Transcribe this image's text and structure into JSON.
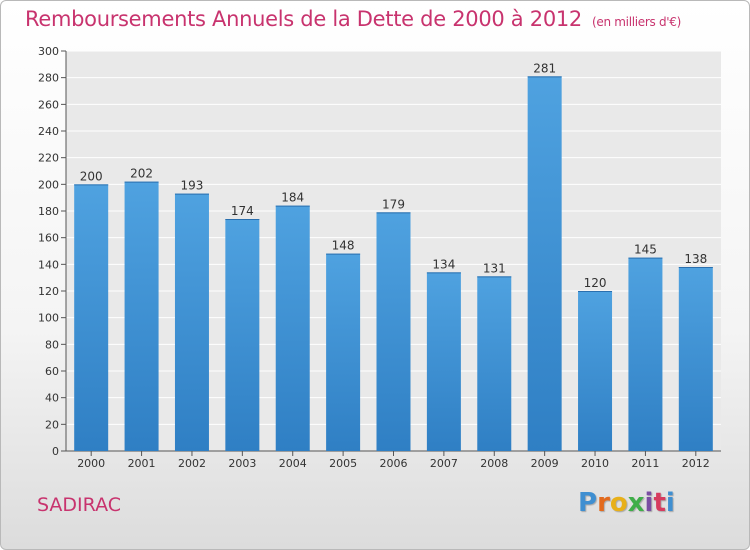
{
  "header": {
    "title": "Remboursements Annuels de la Dette de 2000 à 2012",
    "unit": "(en milliers d'€)"
  },
  "footer": {
    "place": "SADIRAC",
    "logo": "Proxiti",
    "logo_colors": [
      "#3f8fd1",
      "#e36a1d",
      "#e8b01a",
      "#3fae49",
      "#7a4ea3",
      "#d63b5e",
      "#3f8fd1"
    ]
  },
  "colors": {
    "bar": "#4fa2e0",
    "bar_dark": "#2f7fc4",
    "title": "#c8336e"
  },
  "chart_data": {
    "type": "bar",
    "categories": [
      "2000",
      "2001",
      "2002",
      "2003",
      "2004",
      "2005",
      "2006",
      "2007",
      "2008",
      "2009",
      "2010",
      "2011",
      "2012"
    ],
    "values": [
      200,
      202,
      193,
      174,
      184,
      148,
      179,
      134,
      131,
      281,
      120,
      145,
      138
    ],
    "data_labels": [
      "200",
      "202",
      "193",
      "174",
      "184",
      "148",
      "179",
      "134",
      "131",
      "281",
      "120",
      "145",
      "138"
    ],
    "ylim": [
      0,
      300
    ],
    "yticks": [
      "0",
      "20",
      "40",
      "60",
      "80",
      "100",
      "120",
      "140",
      "160",
      "180",
      "200",
      "220",
      "240",
      "260",
      "280",
      "300"
    ],
    "grid": true
  }
}
